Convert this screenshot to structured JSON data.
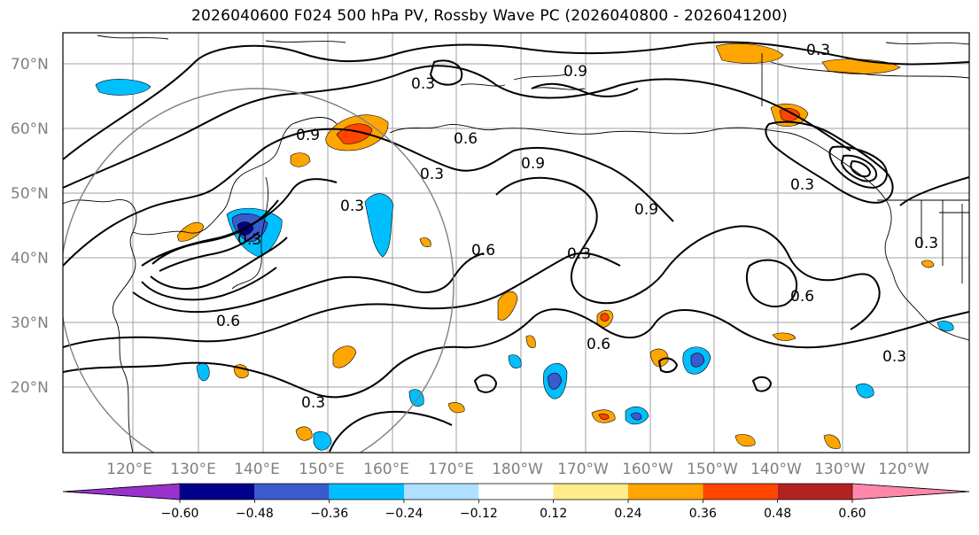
{
  "title": "2026040600 F024 500 hPa PV, Rossby Wave PC (2026040800 - 2026041200)",
  "lat_labels": [
    "70°N",
    "60°N",
    "50°N",
    "40°N",
    "30°N",
    "20°N"
  ],
  "lon_labels": [
    "120°E",
    "130°E",
    "140°E",
    "150°E",
    "160°E",
    "170°E",
    "180°W",
    "170°W",
    "160°W",
    "150°W",
    "140°W",
    "130°W",
    "120°W"
  ],
  "contour_labels": [
    "0.3",
    "0.9",
    "0.9",
    "0.6",
    "0.3",
    "0.9",
    "0.3",
    "0.3",
    "0.9",
    "0.6",
    "0.3",
    "0.6",
    "0.6",
    "0.3",
    "0.6",
    "0.3",
    "0.3",
    "0.3",
    "0.3"
  ],
  "colorbar": {
    "ticks": [
      "−0.60",
      "−0.48",
      "−0.36",
      "−0.24",
      "−0.12",
      "0.12",
      "0.24",
      "0.36",
      "0.48",
      "0.60"
    ],
    "colors": [
      "#9932CC",
      "#00008B",
      "#3A5BCD",
      "#00BFFF",
      "#B0E0FF",
      "#FFFFFF",
      "#FFEC8B",
      "#FFA500",
      "#FF4500",
      "#B22222",
      "#FF88AA"
    ]
  }
}
